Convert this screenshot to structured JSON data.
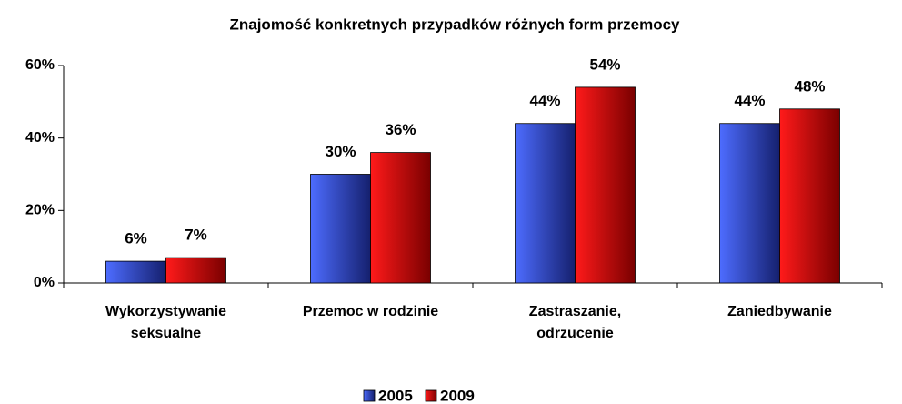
{
  "chart_data": {
    "type": "bar",
    "title": "Znajomość konkretnych przypadków różnych form przemocy",
    "categories": [
      "Wykorzystywanie seksualne",
      "Przemoc w rodzinie",
      "Zastraszanie, odrzucenie",
      "Zaniedbywanie"
    ],
    "series": [
      {
        "name": "2005",
        "color": "#3355dd",
        "values": [
          6,
          30,
          44,
          44
        ],
        "value_labels": [
          "6%",
          "30%",
          "44%",
          "44%"
        ]
      },
      {
        "name": "2009",
        "color": "#ee0000",
        "values": [
          7,
          36,
          54,
          48
        ],
        "value_labels": [
          "7%",
          "36%",
          "54%",
          "48%"
        ]
      }
    ],
    "ylim": [
      0,
      60
    ],
    "yticks": [
      {
        "value": 0,
        "label": "0%"
      },
      {
        "value": 20,
        "label": "20%"
      },
      {
        "value": 40,
        "label": "40%"
      },
      {
        "value": 60,
        "label": "60%"
      }
    ],
    "legend": "bottom"
  }
}
